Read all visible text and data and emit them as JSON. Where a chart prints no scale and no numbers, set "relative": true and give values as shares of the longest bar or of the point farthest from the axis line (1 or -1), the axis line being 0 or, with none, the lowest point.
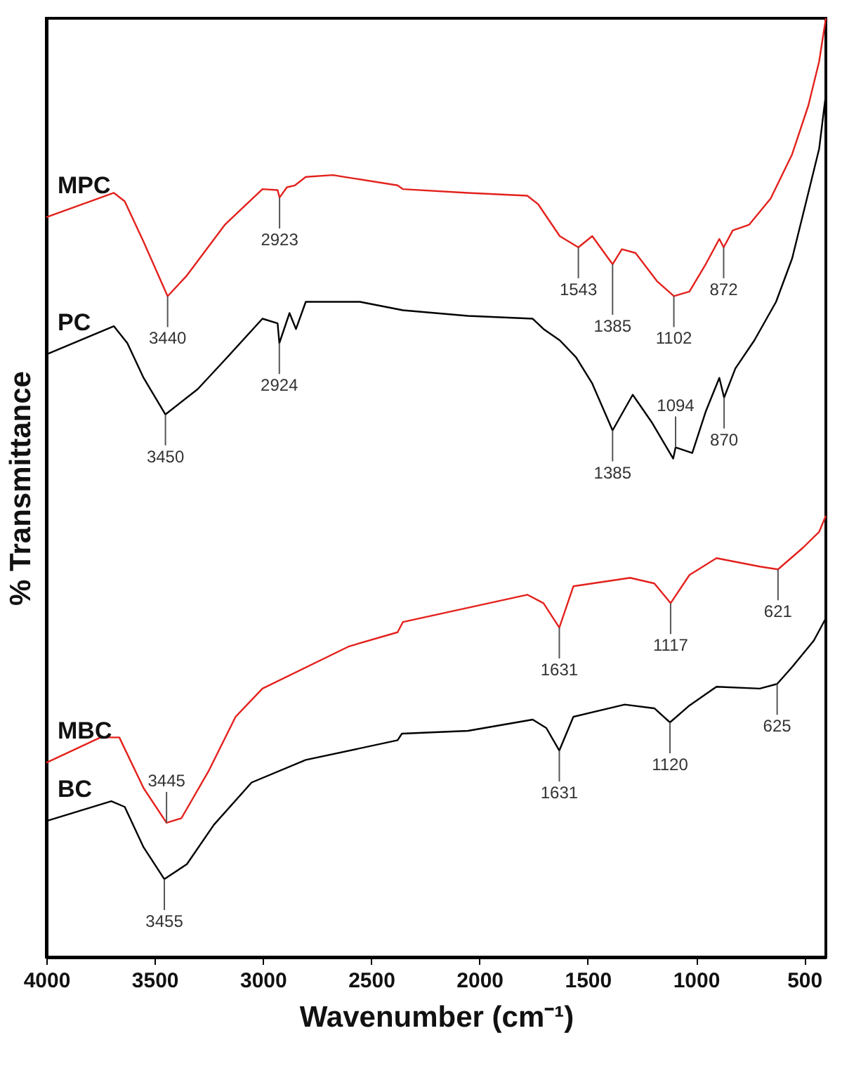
{
  "chart_data": {
    "type": "line",
    "relative": true,
    "xlabel": "Wavenumber (cm⁻¹)",
    "ylabel": "% Transmittance",
    "xlim": [
      4000,
      400
    ],
    "xticks": [
      4000,
      3500,
      3000,
      2500,
      2000,
      1500,
      1000,
      500
    ],
    "series": [
      {
        "name": "MPC",
        "color": "#e3211c",
        "x": [
          4000,
          3688,
          3638,
          3551,
          3440,
          3351,
          3176,
          3002,
          2932,
          2923,
          2889,
          2852,
          2802,
          2677,
          2378,
          2353,
          2053,
          1779,
          1729,
          1629,
          1543,
          1479,
          1385,
          1342,
          1279,
          1180,
          1102,
          1030,
          955,
          892,
          872,
          830,
          755,
          655,
          556,
          481,
          431,
          400
        ],
        "values": [
          0.788,
          0.814,
          0.805,
          0.762,
          0.704,
          0.726,
          0.78,
          0.818,
          0.817,
          0.809,
          0.82,
          0.822,
          0.831,
          0.833,
          0.822,
          0.818,
          0.814,
          0.811,
          0.802,
          0.768,
          0.756,
          0.768,
          0.738,
          0.754,
          0.75,
          0.72,
          0.704,
          0.709,
          0.738,
          0.765,
          0.756,
          0.774,
          0.78,
          0.808,
          0.855,
          0.907,
          0.954,
          1.0
        ]
      },
      {
        "name": "PC",
        "color": "#000000",
        "x": [
          4000,
          3688,
          3626,
          3551,
          3450,
          3301,
          3176,
          3002,
          2932,
          2924,
          2877,
          2847,
          2802,
          2552,
          2353,
          2053,
          1754,
          1704,
          1629,
          1554,
          1479,
          1385,
          1292,
          1205,
          1105,
          1094,
          1017,
          955,
          892,
          870,
          818,
          730,
          630,
          556,
          481,
          431,
          400
        ],
        "values": [
          0.642,
          0.672,
          0.654,
          0.617,
          0.578,
          0.605,
          0.636,
          0.68,
          0.675,
          0.654,
          0.686,
          0.669,
          0.698,
          0.698,
          0.689,
          0.683,
          0.68,
          0.669,
          0.657,
          0.639,
          0.611,
          0.561,
          0.599,
          0.57,
          0.531,
          0.543,
          0.537,
          0.581,
          0.617,
          0.596,
          0.627,
          0.657,
          0.698,
          0.744,
          0.814,
          0.861,
          0.919
        ]
      },
      {
        "name": "MBC",
        "color": "#e3211c",
        "x": [
          4000,
          3750,
          3663,
          3551,
          3445,
          3376,
          3251,
          3126,
          3002,
          2602,
          2378,
          2353,
          1779,
          1704,
          1631,
          1566,
          1304,
          1192,
          1117,
          1030,
          905,
          705,
          621,
          506,
          431,
          400
        ],
        "values": [
          0.207,
          0.234,
          0.234,
          0.18,
          0.143,
          0.148,
          0.198,
          0.256,
          0.286,
          0.331,
          0.346,
          0.357,
          0.386,
          0.377,
          0.351,
          0.395,
          0.404,
          0.398,
          0.377,
          0.407,
          0.425,
          0.416,
          0.413,
          0.436,
          0.453,
          0.47
        ]
      },
      {
        "name": "BC",
        "color": "#000000",
        "x": [
          4000,
          3700,
          3638,
          3551,
          3455,
          3351,
          3226,
          3052,
          2802,
          2378,
          2358,
          2053,
          1754,
          1691,
          1631,
          1566,
          1329,
          1192,
          1120,
          1030,
          905,
          705,
          625,
          556,
          456,
          400
        ],
        "values": [
          0.145,
          0.166,
          0.16,
          0.117,
          0.083,
          0.099,
          0.141,
          0.186,
          0.21,
          0.231,
          0.238,
          0.241,
          0.253,
          0.244,
          0.22,
          0.256,
          0.269,
          0.265,
          0.25,
          0.268,
          0.288,
          0.286,
          0.291,
          0.309,
          0.337,
          0.361
        ]
      }
    ],
    "annotations": [
      {
        "text": "3440",
        "x": 3440,
        "y": 0.704
      },
      {
        "text": "2923",
        "x": 2923,
        "y": 0.809
      },
      {
        "text": "1543",
        "x": 1543,
        "y": 0.756
      },
      {
        "text": "1385",
        "x": 1385,
        "y": 0.738
      },
      {
        "text": "1102",
        "x": 1102,
        "y": 0.704
      },
      {
        "text": "872",
        "x": 872,
        "y": 0.756
      },
      {
        "text": "3450",
        "x": 3450,
        "y": 0.578
      },
      {
        "text": "2924",
        "x": 2924,
        "y": 0.654
      },
      {
        "text": "1385",
        "x": 1385,
        "y": 0.561
      },
      {
        "text": "1094",
        "x": 1094,
        "y": 0.543
      },
      {
        "text": "870",
        "x": 870,
        "y": 0.596
      },
      {
        "text": "3445",
        "x": 3445,
        "y": 0.143
      },
      {
        "text": "1631",
        "x": 1631,
        "y": 0.351
      },
      {
        "text": "1117",
        "x": 1117,
        "y": 0.377
      },
      {
        "text": "621",
        "x": 621,
        "y": 0.413
      },
      {
        "text": "3455",
        "x": 3455,
        "y": 0.083
      },
      {
        "text": "1631",
        "x": 1631,
        "y": 0.22
      },
      {
        "text": "1120",
        "x": 1120,
        "y": 0.25
      },
      {
        "text": "625",
        "x": 625,
        "y": 0.291
      }
    ]
  }
}
